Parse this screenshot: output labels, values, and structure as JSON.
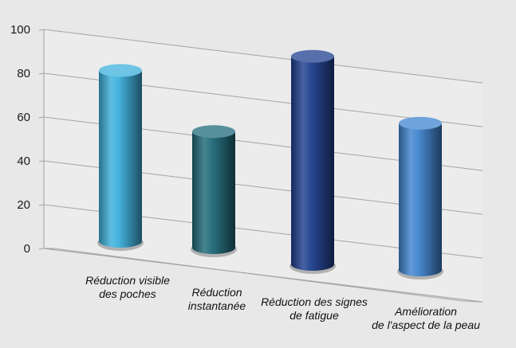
{
  "chart_data": {
    "type": "bar",
    "style": "3d-cylinder",
    "categories": [
      [
        "Réduction visible",
        "des poches"
      ],
      [
        "Réduction",
        "instantanée"
      ],
      [
        "Réduction des signes",
        "de fatigue"
      ],
      [
        "Amélioration",
        "de l'aspect de la peau"
      ]
    ],
    "values": [
      78,
      53,
      95,
      67
    ],
    "ylim": [
      0,
      100
    ],
    "yticks": [
      "0",
      "20",
      "40",
      "60",
      "80",
      "100"
    ],
    "grid": true,
    "colors": [
      "#3cb0dc",
      "#1f6a78",
      "#1f3f8f",
      "#3f84cf"
    ],
    "title": "",
    "xlabel": "",
    "ylabel": ""
  }
}
